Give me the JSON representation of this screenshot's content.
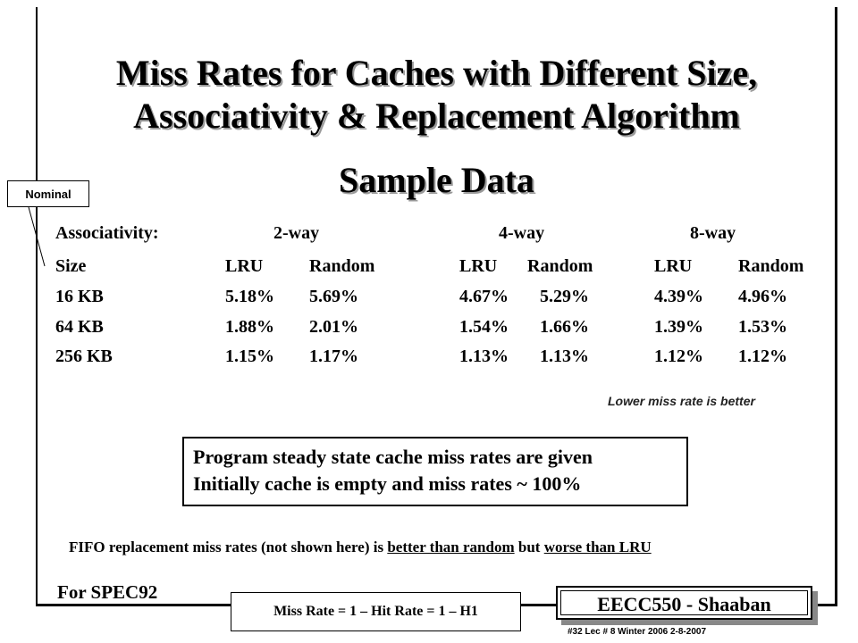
{
  "title": {
    "line1": "Miss Rates for Caches with Different Size,",
    "line2": "Associativity & Replacement Algorithm",
    "subtitle": "Sample Data"
  },
  "nominal_label": "Nominal",
  "table": {
    "assoc_label": "Associativity:",
    "assoc_headers": [
      "2-way",
      "4-way",
      "8-way"
    ],
    "size_label": "Size",
    "sub_headers": [
      "LRU",
      "Random",
      "LRU",
      "Random",
      "LRU",
      "Random"
    ],
    "rows": [
      {
        "size": "16 KB",
        "values": [
          "5.18%",
          "5.69%",
          "4.67%",
          "5.29%",
          "4.39%",
          "4.96%"
        ]
      },
      {
        "size": "64 KB",
        "values": [
          "1.88%",
          "2.01%",
          "1.54%",
          "1.66%",
          "1.39%",
          "1.53%"
        ]
      },
      {
        "size": "256 KB",
        "values": [
          "1.15%",
          "1.17%",
          "1.13%",
          "1.13%",
          "1.12%",
          "1.12%"
        ]
      }
    ]
  },
  "note": "Lower miss rate is better",
  "box": {
    "line1": "Program steady state cache miss rates are given",
    "line2": "Initially cache is empty and miss rates ~ 100%"
  },
  "fifo": {
    "part1": "FIFO replacement  miss rates (not shown here) is ",
    "part2": "better than random",
    "part3": " but ",
    "part4": "worse than LRU"
  },
  "spec": "For SPEC92",
  "formula": "Miss Rate = 1 – Hit Rate = 1 – H1",
  "badge": "EECC550 - Shaaban",
  "footer": "#32   Lec # 8   Winter 2006   2-8-2007"
}
